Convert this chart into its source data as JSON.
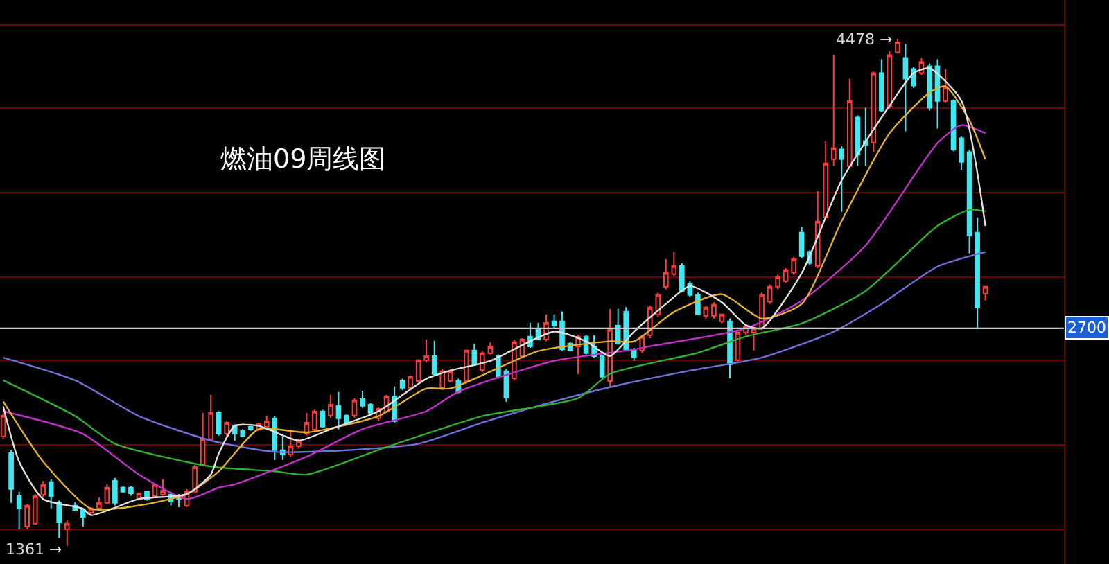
{
  "chart_data": {
    "type": "candlestick",
    "title": "燃油09周线图",
    "categories": [
      null,
      null,
      null,
      null,
      null,
      null,
      null,
      null,
      null,
      null,
      null,
      null,
      null,
      null,
      null,
      null,
      null,
      null,
      null,
      null,
      null,
      null,
      null,
      null,
      null,
      null,
      null,
      null,
      null,
      null,
      null,
      null,
      null,
      null,
      null,
      null,
      null,
      null,
      null,
      null,
      null,
      null,
      null,
      null,
      null,
      null,
      null,
      null,
      null,
      null,
      null,
      null,
      null,
      null,
      null,
      null,
      null,
      null,
      null,
      null,
      null,
      null,
      null,
      null,
      null,
      null,
      null,
      null,
      null,
      null,
      null,
      null,
      null,
      null,
      null,
      null,
      null,
      null,
      null,
      null,
      null,
      null,
      null,
      null,
      null,
      null,
      null,
      null,
      null,
      null,
      null,
      null,
      null,
      null,
      null,
      null,
      null,
      null,
      null,
      null,
      null,
      null,
      null,
      null,
      null,
      null,
      null,
      null,
      null,
      null,
      null,
      null,
      null,
      null,
      null,
      null,
      null,
      null,
      null,
      null,
      null,
      null,
      null,
      null
    ],
    "ohlc": [
      [
        2035,
        2180,
        2020,
        2163
      ],
      [
        1933,
        1950,
        1626,
        1711
      ],
      [
        1668,
        1694,
        1464,
        1592
      ],
      [
        1481,
        1620,
        1464,
        1609
      ],
      [
        1498,
        1680,
        1490,
        1668
      ],
      [
        1677,
        1760,
        1660,
        1737
      ],
      [
        1754,
        1770,
        1592,
        1668
      ],
      [
        1626,
        1640,
        1412,
        1506
      ],
      [
        1464,
        1520,
        1361,
        1498
      ],
      [
        1609,
        1630,
        1580,
        1583
      ],
      [
        1583,
        1590,
        1481,
        1540
      ],
      [
        1566,
        1600,
        1550,
        1592
      ],
      [
        1592,
        1660,
        1580,
        1626
      ],
      [
        1626,
        1740,
        1620,
        1720
      ],
      [
        1762,
        1780,
        1610,
        1626
      ],
      [
        1720,
        1730,
        1690,
        1694
      ],
      [
        1720,
        1730,
        1670,
        1685
      ],
      [
        1651,
        1690,
        1640,
        1685
      ],
      [
        1694,
        1700,
        1640,
        1651
      ],
      [
        1668,
        1745,
        1660,
        1737
      ],
      [
        1677,
        1771,
        1670,
        1702
      ],
      [
        1677,
        1690,
        1609,
        1634
      ],
      [
        1668,
        1680,
        1600,
        1651
      ],
      [
        1609,
        1710,
        1600,
        1694
      ],
      [
        1694,
        1860,
        1690,
        1847
      ],
      [
        1864,
        2180,
        1850,
        2018
      ],
      [
        2018,
        2291,
        2010,
        2180
      ],
      [
        2180,
        2190,
        2040,
        2052
      ],
      [
        2052,
        2130,
        2040,
        2120
      ],
      [
        2103,
        2110,
        2009,
        2052
      ],
      [
        2069,
        2080,
        2030,
        2035
      ],
      [
        2095,
        2100,
        2070,
        2078
      ],
      [
        2078,
        2120,
        2070,
        2112
      ],
      [
        2095,
        2163,
        2090,
        2129
      ],
      [
        2146,
        2160,
        1890,
        1950
      ],
      [
        1950,
        2035,
        1890,
        1924
      ],
      [
        1924,
        2078,
        1910,
        1975
      ],
      [
        1975,
        2020,
        1960,
        2009
      ],
      [
        2052,
        2180,
        2040,
        2120
      ],
      [
        2078,
        2200,
        2070,
        2189
      ],
      [
        2189,
        2200,
        2090,
        2095
      ],
      [
        2163,
        2291,
        2150,
        2231
      ],
      [
        2223,
        2308,
        2078,
        2146
      ],
      [
        2163,
        2170,
        2110,
        2120
      ],
      [
        2163,
        2270,
        2150,
        2257
      ],
      [
        2265,
        2316,
        2210,
        2223
      ],
      [
        2231,
        2240,
        2170,
        2180
      ],
      [
        2146,
        2215,
        2130,
        2205
      ],
      [
        2189,
        2290,
        2180,
        2282
      ],
      [
        2282,
        2342,
        2120,
        2129
      ],
      [
        2376,
        2390,
        2320,
        2334
      ],
      [
        2334,
        2410,
        2320,
        2402
      ],
      [
        2376,
        2510,
        2370,
        2504
      ],
      [
        2504,
        2632,
        2490,
        2529
      ],
      [
        2529,
        2624,
        2410,
        2419
      ],
      [
        2334,
        2450,
        2320,
        2436
      ],
      [
        2376,
        2450,
        2370,
        2436
      ],
      [
        2376,
        2390,
        2300,
        2308
      ],
      [
        2376,
        2570,
        2360,
        2564
      ],
      [
        2564,
        2607,
        2470,
        2479
      ],
      [
        2444,
        2560,
        2430,
        2547
      ],
      [
        2547,
        2615,
        2540,
        2589
      ],
      [
        2529,
        2540,
        2390,
        2402
      ],
      [
        2436,
        2450,
        2248,
        2274
      ],
      [
        2393,
        2630,
        2380,
        2615
      ],
      [
        2529,
        2640,
        2520,
        2632
      ],
      [
        2649,
        2734,
        2580,
        2589
      ],
      [
        2692,
        2734,
        2630,
        2632
      ],
      [
        2632,
        2786,
        2620,
        2734
      ],
      [
        2743,
        2786,
        2700,
        2717
      ],
      [
        2743,
        2803,
        2560,
        2572
      ],
      [
        2607,
        2615,
        2560,
        2564
      ],
      [
        2589,
        2660,
        2419,
        2649
      ],
      [
        2649,
        2660,
        2540,
        2547
      ],
      [
        2589,
        2658,
        2520,
        2529
      ],
      [
        2529,
        2540,
        2390,
        2402
      ],
      [
        2376,
        2820,
        2340,
        2692
      ],
      [
        2717,
        2820,
        2600,
        2607
      ],
      [
        2803,
        2830,
        2560,
        2572
      ],
      [
        2572,
        2580,
        2500,
        2521
      ],
      [
        2564,
        2660,
        2550,
        2649
      ],
      [
        2658,
        2840,
        2640,
        2828
      ],
      [
        2786,
        2920,
        2770,
        2905
      ],
      [
        2956,
        3127,
        2940,
        3042
      ],
      [
        3033,
        3170,
        3020,
        3084
      ],
      [
        3084,
        3100,
        2920,
        2931
      ],
      [
        2973,
        2990,
        2890,
        2905
      ],
      [
        2905,
        2920,
        2780,
        2786
      ],
      [
        2777,
        2840,
        2760,
        2828
      ],
      [
        2777,
        2860,
        2760,
        2845
      ],
      [
        2743,
        2790,
        2730,
        2786
      ],
      [
        2743,
        2760,
        2393,
        2479
      ],
      [
        2504,
        2690,
        2490,
        2675
      ],
      [
        2675,
        2720,
        2660,
        2709
      ],
      [
        2675,
        2710,
        2564,
        2700
      ],
      [
        2700,
        2920,
        2690,
        2905
      ],
      [
        2863,
        2970,
        2850,
        2956
      ],
      [
        2956,
        3030,
        2940,
        3016
      ],
      [
        2990,
        3070,
        2980,
        3059
      ],
      [
        3042,
        3140,
        3030,
        3127
      ],
      [
        3289,
        3323,
        3130,
        3144
      ],
      [
        3170,
        3180,
        3090,
        3101
      ],
      [
        3084,
        3545,
        3070,
        3357
      ],
      [
        3383,
        3852,
        3370,
        3715
      ],
      [
        3741,
        4381,
        3698,
        3809
      ],
      [
        3801,
        3820,
        3417,
        3741
      ],
      [
        3698,
        4236,
        3690,
        4099
      ],
      [
        3997,
        4010,
        3698,
        3767
      ],
      [
        3852,
        4057,
        3698,
        3827
      ],
      [
        3843,
        4280,
        3784,
        4270
      ],
      [
        4270,
        4355,
        4030,
        4040
      ],
      [
        4065,
        4406,
        4050,
        4381
      ],
      [
        4398,
        4478,
        4390,
        4460
      ],
      [
        4364,
        4449,
        3912,
        4236
      ],
      [
        4296,
        4310,
        4180,
        4193
      ],
      [
        4270,
        4364,
        4260,
        4338
      ],
      [
        4313,
        4330,
        4040,
        4057
      ],
      [
        4313,
        4355,
        3929,
        4099
      ],
      [
        4099,
        4296,
        4090,
        4185
      ],
      [
        4099,
        4108,
        3790,
        3801
      ],
      [
        3869,
        3880,
        3673,
        3724
      ],
      [
        3784,
        3800,
        3161,
        3272
      ],
      [
        3289,
        3383,
        2700,
        2828
      ],
      [
        2914,
        2960,
        2871,
        2956
      ]
    ],
    "colors": [
      "#ff3b3b",
      "#3ee8f0",
      "#3ee8f0",
      "#ff3b3b",
      "#ff3b3b",
      "#ff3b3b",
      "#3ee8f0",
      "#3ee8f0",
      "#ff3b3b",
      "#3ee8f0",
      "#3ee8f0",
      "#ff3b3b",
      "#ff3b3b",
      "#ff3b3b",
      "#3ee8f0",
      "#3ee8f0",
      "#3ee8f0",
      "#ff3b3b",
      "#3ee8f0",
      "#ff3b3b",
      "#ff3b3b",
      "#3ee8f0",
      "#3ee8f0",
      "#ff3b3b",
      "#ff3b3b",
      "#ff3b3b",
      "#ff3b3b",
      "#3ee8f0",
      "#ff3b3b",
      "#3ee8f0",
      "#3ee8f0",
      "#3ee8f0",
      "#ff3b3b",
      "#ff3b3b",
      "#3ee8f0",
      "#3ee8f0",
      "#ff3b3b",
      "#ff3b3b",
      "#ff3b3b",
      "#ff3b3b",
      "#3ee8f0",
      "#ff3b3b",
      "#3ee8f0",
      "#3ee8f0",
      "#ff3b3b",
      "#3ee8f0",
      "#3ee8f0",
      "#ff3b3b",
      "#ff3b3b",
      "#3ee8f0",
      "#3ee8f0",
      "#ff3b3b",
      "#ff3b3b",
      "#ff3b3b",
      "#3ee8f0",
      "#ff3b3b",
      "#ff3b3b",
      "#3ee8f0",
      "#ff3b3b",
      "#3ee8f0",
      "#ff3b3b",
      "#ff3b3b",
      "#3ee8f0",
      "#3ee8f0",
      "#ff3b3b",
      "#ff3b3b",
      "#3ee8f0",
      "#3ee8f0",
      "#ff3b3b",
      "#3ee8f0",
      "#3ee8f0",
      "#3ee8f0",
      "#ff3b3b",
      "#3ee8f0",
      "#3ee8f0",
      "#3ee8f0",
      "#ff3b3b",
      "#3ee8f0",
      "#3ee8f0",
      "#3ee8f0",
      "#ff3b3b",
      "#ff3b3b",
      "#ff3b3b",
      "#ff3b3b",
      "#ff3b3b",
      "#3ee8f0",
      "#3ee8f0",
      "#3ee8f0",
      "#ff3b3b",
      "#ff3b3b",
      "#ff3b3b",
      "#3ee8f0",
      "#ff3b3b",
      "#ff3b3b",
      "#ff3b3b",
      "#ff3b3b",
      "#ff3b3b",
      "#ff3b3b",
      "#ff3b3b",
      "#ff3b3b",
      "#3ee8f0",
      "#3ee8f0",
      "#ff3b3b",
      "#ff3b3b",
      "#ff3b3b",
      "#3ee8f0",
      "#ff3b3b",
      "#3ee8f0",
      "#3ee8f0",
      "#ff3b3b",
      "#3ee8f0",
      "#ff3b3b",
      "#ff3b3b",
      "#3ee8f0",
      "#3ee8f0",
      "#ff3b3b",
      "#3ee8f0",
      "#3ee8f0",
      "#ff3b3b",
      "#3ee8f0",
      "#3ee8f0",
      "#3ee8f0",
      "#3ee8f0",
      "#ff3b3b"
    ],
    "series": [
      {
        "type": "line",
        "color": "#7070d8",
        "values": [
          2520,
          null,
          null,
          null,
          null,
          null,
          null,
          null,
          null,
          2380,
          null,
          null,
          null,
          null,
          null,
          null,
          null,
          2160,
          null,
          null,
          null,
          null,
          null,
          null,
          null,
          null,
          2010,
          null,
          null,
          null,
          null,
          null,
          null,
          null,
          1940,
          null,
          null,
          null,
          null,
          null,
          null,
          null,
          null,
          1950,
          null,
          null,
          null,
          null,
          null,
          null,
          null,
          null,
          1990,
          null,
          null,
          null,
          null,
          null,
          null,
          null,
          2120,
          null,
          null,
          null,
          null,
          null,
          null,
          null,
          null,
          2250,
          null,
          null,
          null,
          null,
          null,
          null,
          null,
          2350,
          null,
          null,
          null,
          null,
          null,
          null,
          null,
          null,
          2440,
          null,
          null,
          null,
          null,
          null,
          null,
          null,
          null,
          2520,
          null,
          null,
          null,
          null,
          null,
          null,
          null,
          null,
          2680,
          null,
          null,
          null,
          null,
          null,
          2850,
          null,
          null,
          null,
          null,
          null,
          null,
          3080,
          null,
          null,
          null,
          null,
          null,
          3170
        ]
      },
      {
        "type": "line",
        "color": "#30b030",
        "values": [
          2380,
          null,
          null,
          null,
          null,
          null,
          null,
          null,
          null,
          2160,
          null,
          null,
          null,
          null,
          1990,
          null,
          null,
          null,
          null,
          null,
          null,
          null,
          null,
          null,
          null,
          null,
          1850,
          null,
          null,
          null,
          null,
          null,
          null,
          null,
          1820,
          null,
          null,
          null,
          1800,
          null,
          null,
          null,
          null,
          null,
          null,
          null,
          null,
          null,
          1970,
          null,
          null,
          null,
          null,
          null,
          null,
          null,
          null,
          null,
          null,
          null,
          2160,
          null,
          null,
          null,
          null,
          null,
          null,
          null,
          null,
          null,
          null,
          null,
          2270,
          null,
          null,
          null,
          2420,
          null,
          null,
          null,
          null,
          null,
          null,
          null,
          null,
          null,
          null,
          2550,
          null,
          null,
          null,
          null,
          null,
          2650,
          null,
          null,
          null,
          null,
          null,
          null,
          2730,
          null,
          null,
          null,
          null,
          null,
          null,
          null,
          2930,
          null,
          null,
          null,
          null,
          null,
          null,
          null,
          null,
          3330,
          null,
          null,
          null,
          3430,
          null,
          3420
        ]
      },
      {
        "type": "line",
        "color": "#c030c8",
        "values": [
          2190,
          null,
          null,
          null,
          null,
          null,
          null,
          null,
          null,
          null,
          2050,
          null,
          null,
          null,
          null,
          null,
          null,
          1800,
          null,
          null,
          null,
          null,
          null,
          1650,
          null,
          null,
          null,
          1720,
          null,
          1740,
          null,
          null,
          null,
          null,
          null,
          null,
          null,
          null,
          1910,
          null,
          null,
          null,
          null,
          null,
          null,
          2080,
          null,
          null,
          null,
          null,
          null,
          null,
          null,
          2190,
          null,
          null,
          null,
          2310,
          null,
          null,
          null,
          null,
          null,
          null,
          null,
          null,
          null,
          null,
          null,
          2500,
          null,
          null,
          null,
          null,
          null,
          null,
          null,
          null,
          null,
          2570,
          null,
          2590,
          null,
          null,
          null,
          null,
          null,
          null,
          null,
          null,
          null,
          null,
          null,
          2700,
          null,
          null,
          null,
          null,
          null,
          null,
          2870,
          null,
          null,
          null,
          null,
          null,
          null,
          null,
          3210,
          null,
          null,
          null,
          null,
          null,
          null,
          null,
          null,
          3840,
          null,
          null,
          3950,
          null,
          null,
          3900
        ]
      },
      {
        "type": "line",
        "color": "#e0b030",
        "values": [
          2250,
          null,
          null,
          null,
          null,
          1880,
          null,
          null,
          null,
          null,
          null,
          1590,
          null,
          null,
          null,
          null,
          null,
          1610,
          null,
          null,
          null,
          null,
          null,
          1680,
          null,
          null,
          null,
          1820,
          null,
          null,
          null,
          null,
          2080,
          null,
          null,
          null,
          null,
          null,
          2060,
          null,
          null,
          null,
          null,
          null,
          null,
          null,
          null,
          2160,
          null,
          null,
          null,
          null,
          null,
          2330,
          null,
          null,
          2330,
          null,
          null,
          null,
          null,
          null,
          null,
          null,
          null,
          null,
          null,
          2560,
          null,
          null,
          null,
          null,
          null,
          null,
          null,
          null,
          2620,
          null,
          null,
          2620,
          null,
          null,
          null,
          null,
          2800,
          null,
          null,
          null,
          null,
          null,
          2910,
          null,
          null,
          null,
          null,
          2760,
          null,
          null,
          null,
          null,
          2850,
          null,
          null,
          null,
          null,
          3360,
          null,
          null,
          null,
          null,
          null,
          3900,
          null,
          null,
          null,
          null,
          4150,
          null,
          4190,
          null,
          null,
          3980,
          null,
          3740
        ]
      },
      {
        "type": "line",
        "color": "#e0e0e0",
        "values": [
          2220,
          null,
          1880,
          null,
          null,
          1650,
          null,
          null,
          null,
          null,
          1590,
          1550,
          null,
          null,
          null,
          null,
          null,
          1650,
          null,
          null,
          null,
          null,
          null,
          1680,
          null,
          null,
          1800,
          1930,
          null,
          2100,
          null,
          null,
          2100,
          null,
          null,
          null,
          null,
          2010,
          null,
          null,
          null,
          2080,
          null,
          null,
          null,
          null,
          null,
          2190,
          null,
          null,
          null,
          null,
          null,
          2390,
          null,
          null,
          2440,
          null,
          null,
          null,
          null,
          2500,
          null,
          null,
          null,
          null,
          null,
          null,
          null,
          2680,
          null,
          null,
          null,
          2620,
          null,
          null,
          2530,
          null,
          null,
          2680,
          null,
          null,
          null,
          2850,
          null,
          null,
          2960,
          null,
          null,
          null,
          2860,
          null,
          null,
          2720,
          null,
          2700,
          null,
          null,
          null,
          null,
          3040,
          null,
          null,
          null,
          null,
          3610,
          null,
          null,
          null,
          null,
          null,
          4070,
          null,
          null,
          4270,
          null,
          4300,
          null,
          null,
          null,
          4100,
          null,
          null,
          3330
        ]
      }
    ],
    "annotations": [
      "4478 →",
      "1361 →"
    ],
    "ref_lines": [
      {
        "axis": "y",
        "value": 2700,
        "label": "2700",
        "color": "#c8c8c8"
      }
    ],
    "ylim": [
      1250,
      4720
    ],
    "yticks": [
      {
        "value": 1464,
        "label": null
      },
      {
        "value": 1984,
        "label": null
      },
      {
        "value": 2504,
        "label": null
      },
      {
        "value": 3016,
        "label": null
      },
      {
        "value": 3536,
        "label": null
      },
      {
        "value": 4057,
        "label": null
      },
      {
        "value": 4568,
        "label": null
      }
    ],
    "grid": "y",
    "tick_labels": false
  }
}
